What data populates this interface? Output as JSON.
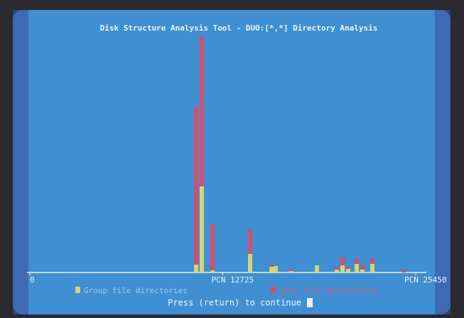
{
  "chart_data": {
    "type": "bar",
    "stacked": true,
    "title": "Disk Structure Analysis Tool - DUO:[*,*] Directory Analysis",
    "x": [
      10970,
      11340,
      12045,
      14530,
      15935,
      16217,
      17248,
      18935,
      20248,
      20623,
      20998,
      21560,
      21935,
      22591,
      24653
    ],
    "xlim": [
      0,
      25450
    ],
    "xticks": [
      0,
      {
        "value": 12725,
        "label": "PCN 12725"
      },
      {
        "value": 25450,
        "label": "PCN 25450"
      }
    ],
    "series": [
      {
        "name": "Group file directories",
        "color": "#d4d577",
        "values": [
          11,
          121,
          3,
          26,
          8,
          9,
          2,
          10,
          4,
          10,
          5,
          12,
          4,
          12,
          0
        ]
      },
      {
        "name": "User file directories",
        "color": "#d24f6c",
        "values": [
          222,
          210,
          65,
          34,
          3,
          0,
          3,
          0,
          4,
          12,
          3,
          7,
          7,
          8,
          4
        ]
      }
    ],
    "footer": "Press (return) to continue"
  }
}
